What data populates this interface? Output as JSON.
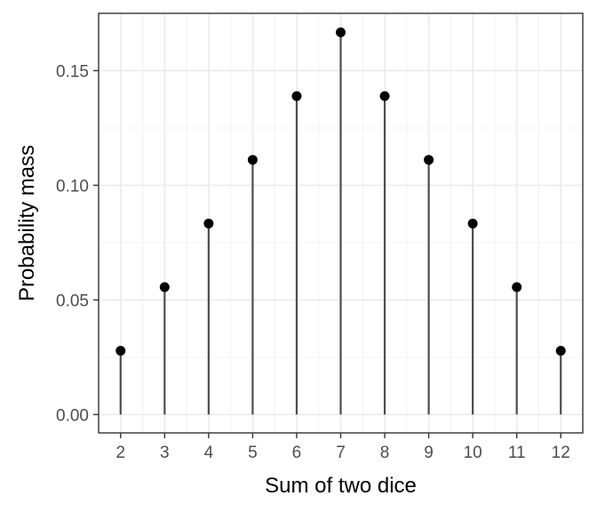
{
  "chart_data": {
    "type": "lollipop",
    "title": "",
    "xlabel": "Sum of two dice",
    "ylabel": "Probability mass",
    "x": [
      2,
      3,
      4,
      5,
      6,
      7,
      8,
      9,
      10,
      11,
      12
    ],
    "y": [
      0.0278,
      0.0556,
      0.0833,
      0.1111,
      0.1389,
      0.1667,
      0.1389,
      0.1111,
      0.0833,
      0.0556,
      0.0278
    ],
    "xlim": [
      1.5,
      12.5
    ],
    "ylim": [
      -0.008,
      0.175
    ],
    "x_ticks": [
      2,
      3,
      4,
      5,
      6,
      7,
      8,
      9,
      10,
      11,
      12
    ],
    "x_tick_labels": [
      "2",
      "3",
      "4",
      "5",
      "6",
      "7",
      "8",
      "9",
      "10",
      "11",
      "12"
    ],
    "y_ticks": [
      0,
      0.05,
      0.1,
      0.15
    ],
    "y_tick_labels": [
      "0.00",
      "0.05",
      "0.10",
      "0.15"
    ],
    "grid": true,
    "legend": "none",
    "colors": {
      "point": "#000000",
      "stem": "#4d4d4d",
      "major_grid": "#ebebeb",
      "minor_grid": "#f3f3f3",
      "panel_border": "#333333"
    }
  }
}
